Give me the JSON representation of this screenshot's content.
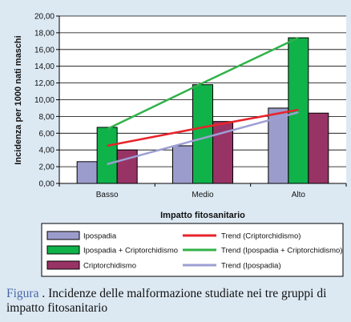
{
  "chart_data": {
    "type": "bar",
    "categories": [
      "Basso",
      "Medio",
      "Alto"
    ],
    "series": [
      {
        "name": "Ipospadia",
        "values": [
          2.6,
          4.5,
          9.0
        ],
        "color": "#9c9ccc"
      },
      {
        "name": "Ipospadia + Criptorchidismo",
        "values": [
          6.7,
          11.8,
          17.4
        ],
        "color": "#10b24a"
      },
      {
        "name": "Criptorchidismo",
        "values": [
          4.0,
          7.4,
          8.4
        ],
        "color": "#983366"
      }
    ],
    "trends": [
      {
        "name": "Trend (Criptorchidismo)",
        "values": [
          4.5,
          6.7,
          8.8
        ],
        "color": "#e8232b"
      },
      {
        "name": "Trend (Ipospadia + Criptorchidismo)",
        "values": [
          6.5,
          12.0,
          17.4
        ],
        "color": "#31b24a"
      },
      {
        "name": "Trend (Ipospadia)",
        "values": [
          2.3,
          5.4,
          8.5
        ],
        "color": "#9d9fd4"
      }
    ],
    "xlabel": "Impatto fitosanitario",
    "ylabel": "Incidenza per 1000 nati maschi",
    "ylim": [
      0,
      20
    ],
    "yticks": [
      "0,00",
      "2,00",
      "4,00",
      "6,00",
      "8,00",
      "10,00",
      "12,00",
      "14,00",
      "16,00",
      "18,00",
      "20,00"
    ],
    "grid": true,
    "legend_position": "bottom"
  },
  "caption": {
    "label": "Figura",
    "text": " . Incidenze delle malformazione studiate nei tre gruppi di impatto fitosanitario"
  }
}
